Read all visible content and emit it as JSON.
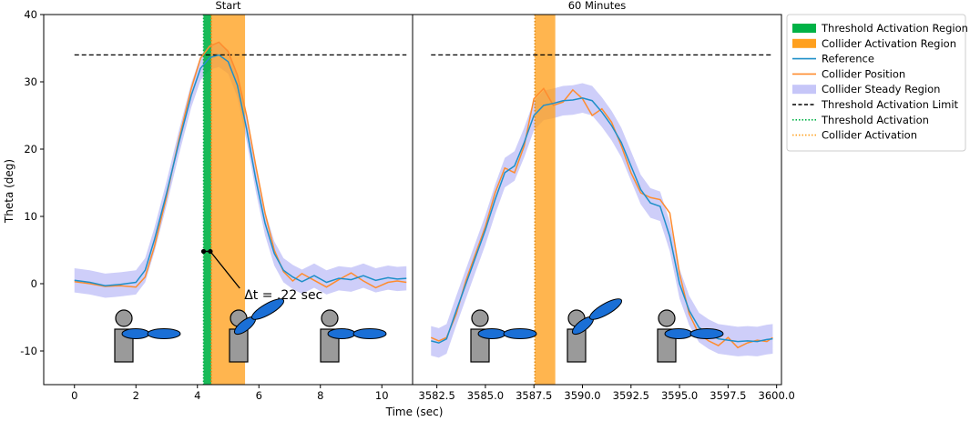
{
  "figure": {
    "ylabel": "Theta (deg)",
    "xlabel": "Time (sec)",
    "ylim": [
      -15,
      40
    ],
    "yticks": [
      -10,
      0,
      10,
      20,
      30,
      40
    ],
    "threshold_limit": 34
  },
  "legend": {
    "placement": "right",
    "entries": [
      {
        "label": "Threshold Activation Region",
        "kind": "patch",
        "color": "#00b246"
      },
      {
        "label": "Collider Activation Region",
        "kind": "patch",
        "color": "#ffa01e"
      },
      {
        "label": "Reference",
        "kind": "line",
        "color": "#1f8fc8",
        "dash": "solid"
      },
      {
        "label": "Collider Position",
        "kind": "line",
        "color": "#ff8c2e",
        "dash": "solid"
      },
      {
        "label": "Collider Steady Region",
        "kind": "patch",
        "color": "#c6c6f8"
      },
      {
        "label": "Threshold Activation Limit",
        "kind": "line",
        "color": "#000000",
        "dash": "dashed"
      },
      {
        "label": "Threshold Activation",
        "kind": "line",
        "color": "#00b246",
        "dash": "dotted"
      },
      {
        "label": "Collider Activation",
        "kind": "line",
        "color": "#ffa01e",
        "dash": "dotted"
      }
    ]
  },
  "colors": {
    "reference": "#1f8fc8",
    "collider": "#ff8c2e",
    "steady": "#c6c6f8",
    "threshold_region": "#00b246",
    "collider_region": "#ffa01e",
    "limit": "#000000",
    "figure_gray": "#9a9a9a",
    "figure_arm": "#1a6fd6"
  },
  "chart_data": [
    {
      "type": "line",
      "title": "Start",
      "xlabel": "Time (sec)",
      "ylabel": "Theta (deg)",
      "xlim": [
        -1.0,
        11.0
      ],
      "ylim": [
        -15,
        40
      ],
      "xticks": [
        0,
        2,
        4,
        6,
        8,
        10
      ],
      "xticklabels": [
        "0",
        "2",
        "4",
        "6",
        "8",
        "10"
      ],
      "threshold_limit": {
        "y": 34,
        "x": [
          0,
          10.8
        ]
      },
      "threshold_region": [
        4.2,
        4.45
      ],
      "collider_region": [
        4.45,
        5.55
      ],
      "threshold_activation_x": 4.2,
      "collider_activation_x": 4.45,
      "series": [
        {
          "name": "Reference",
          "x": [
            0,
            0.5,
            1.0,
            1.5,
            2.0,
            2.3,
            2.6,
            3.0,
            3.4,
            3.8,
            4.1,
            4.4,
            4.7,
            5.0,
            5.3,
            5.6,
            5.9,
            6.2,
            6.5,
            6.8,
            7.1,
            7.4,
            7.8,
            8.2,
            8.6,
            9.0,
            9.4,
            9.8,
            10.2,
            10.5,
            10.8
          ],
          "y": [
            0.5,
            0.2,
            -0.3,
            -0.1,
            0.2,
            2.0,
            6.5,
            13.5,
            21.0,
            28.0,
            32.0,
            33.6,
            34.0,
            33.0,
            29.5,
            23.0,
            15.5,
            9.0,
            4.5,
            2.0,
            1.0,
            0.3,
            1.2,
            0.2,
            0.8,
            0.6,
            1.2,
            0.5,
            0.9,
            0.7,
            0.8
          ]
        },
        {
          "name": "Collider Position",
          "x": [
            0,
            0.5,
            1.0,
            1.5,
            2.0,
            2.3,
            2.6,
            3.0,
            3.4,
            3.8,
            4.1,
            4.4,
            4.7,
            5.0,
            5.3,
            5.6,
            5.9,
            6.2,
            6.5,
            6.8,
            7.1,
            7.4,
            7.8,
            8.2,
            8.6,
            9.0,
            9.4,
            9.8,
            10.2,
            10.5,
            10.8
          ],
          "y": [
            0.3,
            0.0,
            -0.4,
            -0.3,
            -0.5,
            1.0,
            5.5,
            13.0,
            21.5,
            29.0,
            33.5,
            35.3,
            35.9,
            34.5,
            31.0,
            25.0,
            17.5,
            10.5,
            5.0,
            1.8,
            0.4,
            1.5,
            0.5,
            -0.5,
            0.6,
            1.6,
            0.4,
            -0.6,
            0.2,
            0.4,
            0.2
          ]
        },
        {
          "name": "Collider Steady Region",
          "band_halfwidth": 1.8
        }
      ],
      "annotation": {
        "text": "Δt = .22 sec",
        "points": [
          [
            4.2,
            4.8
          ],
          [
            4.42,
            4.8
          ]
        ],
        "text_at": [
          6.8,
          -2.3
        ]
      },
      "postures": [
        "arm-extended-horizontal",
        "arm-raised-diagonal",
        "arm-extended-horizontal"
      ]
    },
    {
      "type": "line",
      "title": "60 Minutes",
      "xlabel": "Time (sec)",
      "ylabel": "Theta (deg)",
      "xlim": [
        3581.25,
        3600.25
      ],
      "ylim": [
        -15,
        40
      ],
      "xticks": [
        3582.5,
        3585.0,
        3587.5,
        3590.0,
        3592.5,
        3595.0,
        3597.5,
        3600.0
      ],
      "xticklabels": [
        "3582.5",
        "3585.0",
        "3587.5",
        "3590.0",
        "3592.5",
        "3595.0",
        "3597.5",
        "3600.0"
      ],
      "threshold_limit": {
        "y": 34,
        "x": [
          3582.2,
          3599.8
        ]
      },
      "collider_region": [
        3587.55,
        3588.6
      ],
      "collider_activation_x": 3587.55,
      "series": [
        {
          "name": "Reference",
          "x": [
            3582.2,
            3582.6,
            3583.0,
            3583.5,
            3584.0,
            3584.5,
            3585.0,
            3585.5,
            3586.0,
            3586.5,
            3587.0,
            3587.5,
            3588.0,
            3588.5,
            3589.0,
            3589.5,
            3590.0,
            3590.5,
            3591.0,
            3591.5,
            3592.0,
            3592.5,
            3593.0,
            3593.5,
            3594.0,
            3594.5,
            3595.0,
            3595.5,
            3596.0,
            3596.5,
            3597.0,
            3597.5,
            3598.0,
            3598.5,
            3599.0,
            3599.5,
            3599.8
          ],
          "y": [
            -8.5,
            -8.8,
            -8.2,
            -4.0,
            0.0,
            4.0,
            8.0,
            12.5,
            16.5,
            17.5,
            21.0,
            25.0,
            26.5,
            26.8,
            27.2,
            27.3,
            27.6,
            27.2,
            25.5,
            23.5,
            21.0,
            17.5,
            14.0,
            12.0,
            11.5,
            7.0,
            0.0,
            -4.0,
            -6.5,
            -7.5,
            -8.2,
            -8.4,
            -8.6,
            -8.5,
            -8.6,
            -8.3,
            -8.2
          ]
        },
        {
          "name": "Collider Position",
          "x": [
            3582.2,
            3582.6,
            3583.0,
            3583.5,
            3584.0,
            3584.5,
            3585.0,
            3585.5,
            3586.0,
            3586.5,
            3587.0,
            3587.5,
            3588.0,
            3588.5,
            3589.0,
            3589.5,
            3590.0,
            3590.5,
            3591.0,
            3591.5,
            3592.0,
            3592.5,
            3593.0,
            3593.5,
            3594.0,
            3594.5,
            3595.0,
            3595.5,
            3596.0,
            3596.5,
            3597.0,
            3597.5,
            3598.0,
            3598.5,
            3599.0,
            3599.5,
            3599.8
          ],
          "y": [
            -8.0,
            -8.5,
            -8.0,
            -4.5,
            0.5,
            4.5,
            8.5,
            13.5,
            17.2,
            16.5,
            20.5,
            27.5,
            29.0,
            26.5,
            27.0,
            28.8,
            27.5,
            25.0,
            26.0,
            24.0,
            20.5,
            16.5,
            13.5,
            12.8,
            12.5,
            10.5,
            1.5,
            -4.5,
            -7.5,
            -8.5,
            -9.2,
            -8.0,
            -9.5,
            -8.8,
            -8.4,
            -8.6,
            -8.0
          ]
        },
        {
          "name": "Collider Steady Region",
          "band_halfwidth": 2.2
        }
      ],
      "postures": [
        "arm-extended-horizontal",
        "arm-raised-diagonal",
        "arm-extended-horizontal"
      ]
    }
  ]
}
